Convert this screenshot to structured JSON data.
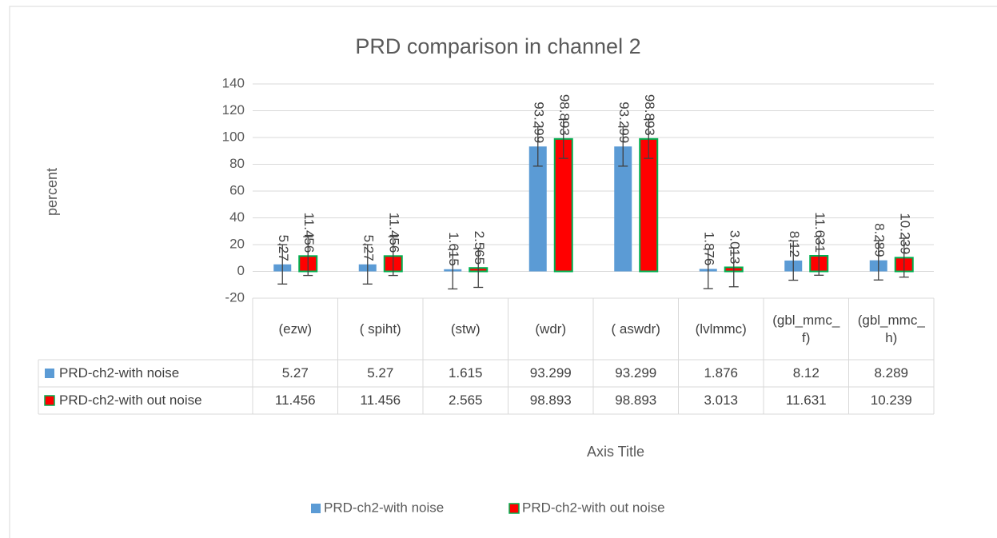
{
  "chart_data": {
    "type": "bar",
    "title": "PRD comparison in channel 2",
    "y_label": "percent",
    "x_label": "Axis Title",
    "categories": [
      "(ezw)",
      "( spiht)",
      "(stw)",
      "(wdr)",
      "( aswdr)",
      "(lvlmmc)",
      "(gbl_mmc_f)",
      "(gbl_mmc_h)"
    ],
    "series": [
      {
        "name": "PRD-ch2-with noise",
        "color": "#5b9bd5",
        "values": [
          5.27,
          5.27,
          1.615,
          93.299,
          93.299,
          1.876,
          8.12,
          8.289
        ],
        "error": 14.7
      },
      {
        "name": "PRD-ch2-with out noise",
        "color": "#ff0000",
        "border": "#00b050",
        "values": [
          11.456,
          11.456,
          2.565,
          98.893,
          98.893,
          3.013,
          11.631,
          10.239
        ],
        "error": 14.5
      }
    ],
    "ylim": [
      -20,
      140
    ],
    "yticks": [
      -20,
      0,
      20,
      40,
      60,
      80,
      100,
      120,
      140
    ],
    "grid": true,
    "data_table": true,
    "legend": "bottom"
  }
}
